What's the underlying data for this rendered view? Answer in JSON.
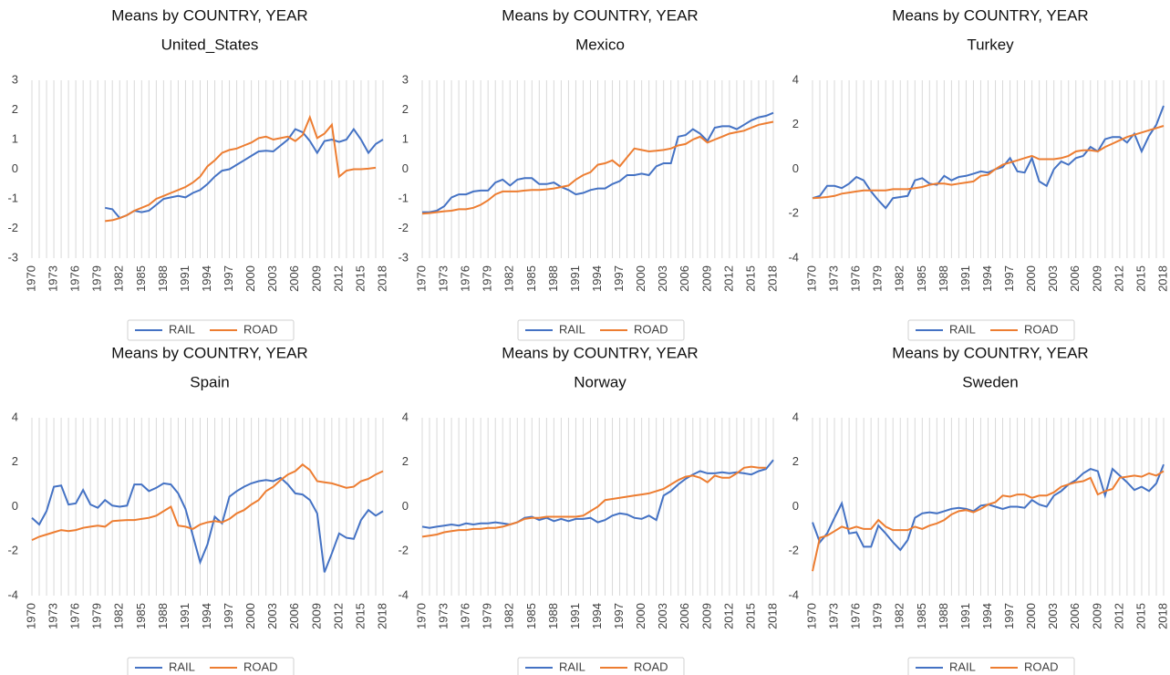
{
  "chart_data": [
    {
      "type": "line",
      "title": "Means by COUNTRY, YEAR",
      "subtitle": "United_States",
      "x": [
        1970,
        1971,
        1972,
        1973,
        1974,
        1975,
        1976,
        1977,
        1978,
        1979,
        1980,
        1981,
        1982,
        1983,
        1984,
        1985,
        1986,
        1987,
        1988,
        1989,
        1990,
        1991,
        1992,
        1993,
        1994,
        1995,
        1996,
        1997,
        1998,
        1999,
        2000,
        2001,
        2002,
        2003,
        2004,
        2005,
        2006,
        2007,
        2008,
        2009,
        2010,
        2011,
        2012,
        2013,
        2014,
        2015,
        2016,
        2017,
        2018
      ],
      "xlim": [
        1970,
        2018
      ],
      "xticks": [
        1970,
        1973,
        1976,
        1979,
        1982,
        1985,
        1988,
        1991,
        1994,
        1997,
        2000,
        2003,
        2006,
        2009,
        2012,
        2015,
        2018
      ],
      "ylim": [
        -3,
        3
      ],
      "yticks": [
        -3,
        -2,
        -1,
        0,
        1,
        2,
        3
      ],
      "grid": true,
      "legend": "bottom",
      "series": [
        {
          "name": "RAIL",
          "color": "#4472c4",
          "values": [
            null,
            null,
            null,
            null,
            null,
            null,
            null,
            null,
            null,
            null,
            -1.3,
            -1.35,
            -1.65,
            -1.55,
            -1.4,
            -1.45,
            -1.4,
            -1.2,
            -1.0,
            -0.95,
            -0.9,
            -0.95,
            -0.8,
            -0.7,
            -0.5,
            -0.25,
            -0.05,
            0.0,
            0.15,
            0.3,
            0.45,
            0.6,
            0.62,
            0.6,
            0.8,
            1.0,
            1.35,
            1.25,
            0.95,
            0.55,
            0.95,
            1.0,
            0.92,
            1.0,
            1.35,
            1.0,
            0.55,
            0.85,
            1.0
          ]
        },
        {
          "name": "ROAD",
          "color": "#ed7d31",
          "values": [
            null,
            null,
            null,
            null,
            null,
            null,
            null,
            null,
            null,
            null,
            -1.75,
            -1.72,
            -1.65,
            -1.55,
            -1.4,
            -1.3,
            -1.2,
            -1.0,
            -0.9,
            -0.8,
            -0.7,
            -0.6,
            -0.45,
            -0.25,
            0.1,
            0.3,
            0.55,
            0.65,
            0.7,
            0.8,
            0.9,
            1.05,
            1.1,
            1.0,
            1.05,
            1.1,
            0.95,
            1.15,
            1.75,
            1.05,
            1.2,
            1.5,
            -0.25,
            -0.05,
            0.0,
            0.0,
            0.02,
            0.05,
            null
          ]
        }
      ]
    },
    {
      "type": "line",
      "title": "Means by COUNTRY, YEAR",
      "subtitle": "Mexico",
      "x": [
        1970,
        1971,
        1972,
        1973,
        1974,
        1975,
        1976,
        1977,
        1978,
        1979,
        1980,
        1981,
        1982,
        1983,
        1984,
        1985,
        1986,
        1987,
        1988,
        1989,
        1990,
        1991,
        1992,
        1993,
        1994,
        1995,
        1996,
        1997,
        1998,
        1999,
        2000,
        2001,
        2002,
        2003,
        2004,
        2005,
        2006,
        2007,
        2008,
        2009,
        2010,
        2011,
        2012,
        2013,
        2014,
        2015,
        2016,
        2017,
        2018
      ],
      "xlim": [
        1970,
        2018
      ],
      "xticks": [
        1970,
        1973,
        1976,
        1979,
        1982,
        1985,
        1988,
        1991,
        1994,
        1997,
        2000,
        2003,
        2006,
        2009,
        2012,
        2015,
        2018
      ],
      "ylim": [
        -3,
        3
      ],
      "yticks": [
        -3,
        -2,
        -1,
        0,
        1,
        2,
        3
      ],
      "grid": true,
      "legend": "bottom",
      "series": [
        {
          "name": "RAIL",
          "color": "#4472c4",
          "values": [
            -1.45,
            -1.45,
            -1.4,
            -1.25,
            -0.95,
            -0.85,
            -0.85,
            -0.75,
            -0.72,
            -0.72,
            -0.45,
            -0.35,
            -0.55,
            -0.35,
            -0.3,
            -0.3,
            -0.5,
            -0.5,
            -0.45,
            -0.6,
            -0.7,
            -0.85,
            -0.8,
            -0.7,
            -0.65,
            -0.65,
            -0.5,
            -0.4,
            -0.2,
            -0.2,
            -0.15,
            -0.2,
            0.1,
            0.2,
            0.2,
            1.1,
            1.15,
            1.35,
            1.2,
            0.95,
            1.4,
            1.45,
            1.45,
            1.35,
            1.5,
            1.65,
            1.75,
            1.8,
            1.9
          ]
        },
        {
          "name": "ROAD",
          "color": "#ed7d31",
          "values": [
            -1.5,
            -1.48,
            -1.45,
            -1.42,
            -1.4,
            -1.35,
            -1.35,
            -1.3,
            -1.2,
            -1.05,
            -0.85,
            -0.75,
            -0.75,
            -0.75,
            -0.72,
            -0.7,
            -0.7,
            -0.68,
            -0.65,
            -0.6,
            -0.55,
            -0.35,
            -0.2,
            -0.1,
            0.15,
            0.2,
            0.3,
            0.1,
            0.4,
            0.7,
            0.65,
            0.6,
            0.62,
            0.65,
            0.7,
            0.8,
            0.85,
            1.0,
            1.1,
            0.9,
            1.0,
            1.1,
            1.2,
            1.25,
            1.3,
            1.4,
            1.5,
            1.55,
            1.6
          ]
        }
      ]
    },
    {
      "type": "line",
      "title": "Means by COUNTRY, YEAR",
      "subtitle": "Turkey",
      "x": [
        1970,
        1971,
        1972,
        1973,
        1974,
        1975,
        1976,
        1977,
        1978,
        1979,
        1980,
        1981,
        1982,
        1983,
        1984,
        1985,
        1986,
        1987,
        1988,
        1989,
        1990,
        1991,
        1992,
        1993,
        1994,
        1995,
        1996,
        1997,
        1998,
        1999,
        2000,
        2001,
        2002,
        2003,
        2004,
        2005,
        2006,
        2007,
        2008,
        2009,
        2010,
        2011,
        2012,
        2013,
        2014,
        2015,
        2016,
        2017,
        2018
      ],
      "xlim": [
        1970,
        2018
      ],
      "xticks": [
        1970,
        1973,
        1976,
        1979,
        1982,
        1985,
        1988,
        1991,
        1994,
        1997,
        2000,
        2003,
        2006,
        2009,
        2012,
        2015,
        2018
      ],
      "ylim": [
        -4,
        4
      ],
      "yticks": [
        -4,
        -2,
        0,
        2,
        4
      ],
      "grid": true,
      "legend": "bottom",
      "series": [
        {
          "name": "RAIL",
          "color": "#4472c4",
          "values": [
            -1.3,
            -1.2,
            -0.75,
            -0.75,
            -0.85,
            -0.65,
            -0.35,
            -0.5,
            -1.0,
            -1.4,
            -1.75,
            -1.3,
            -1.25,
            -1.2,
            -0.5,
            -0.4,
            -0.65,
            -0.7,
            -0.3,
            -0.5,
            -0.35,
            -0.3,
            -0.2,
            -0.1,
            -0.15,
            0.0,
            0.1,
            0.5,
            -0.1,
            -0.15,
            0.5,
            -0.55,
            -0.75,
            0.0,
            0.35,
            0.2,
            0.5,
            0.6,
            1.0,
            0.8,
            1.35,
            1.45,
            1.45,
            1.2,
            1.6,
            0.8,
            1.5,
            2.0,
            2.85
          ]
        },
        {
          "name": "ROAD",
          "color": "#ed7d31",
          "values": [
            -1.3,
            -1.28,
            -1.25,
            -1.2,
            -1.1,
            -1.05,
            -1.0,
            -0.95,
            -0.95,
            -0.95,
            -0.95,
            -0.9,
            -0.9,
            -0.9,
            -0.85,
            -0.8,
            -0.7,
            -0.65,
            -0.65,
            -0.7,
            -0.65,
            -0.6,
            -0.55,
            -0.3,
            -0.25,
            0.0,
            0.2,
            0.3,
            0.4,
            0.5,
            0.6,
            0.45,
            0.45,
            0.45,
            0.5,
            0.6,
            0.8,
            0.85,
            0.85,
            0.8,
            1.0,
            1.15,
            1.3,
            1.45,
            1.55,
            1.65,
            1.75,
            1.85,
            1.95
          ]
        }
      ]
    },
    {
      "type": "line",
      "title": "Means by COUNTRY, YEAR",
      "subtitle": "Spain",
      "x": [
        1970,
        1971,
        1972,
        1973,
        1974,
        1975,
        1976,
        1977,
        1978,
        1979,
        1980,
        1981,
        1982,
        1983,
        1984,
        1985,
        1986,
        1987,
        1988,
        1989,
        1990,
        1991,
        1992,
        1993,
        1994,
        1995,
        1996,
        1997,
        1998,
        1999,
        2000,
        2001,
        2002,
        2003,
        2004,
        2005,
        2006,
        2007,
        2008,
        2009,
        2010,
        2011,
        2012,
        2013,
        2014,
        2015,
        2016,
        2017,
        2018
      ],
      "xlim": [
        1970,
        2018
      ],
      "xticks": [
        1970,
        1973,
        1976,
        1979,
        1982,
        1985,
        1988,
        1991,
        1994,
        1997,
        2000,
        2003,
        2006,
        2009,
        2012,
        2015,
        2018
      ],
      "ylim": [
        -4,
        4
      ],
      "yticks": [
        -4,
        -2,
        0,
        2,
        4
      ],
      "grid": true,
      "legend": "bottom",
      "series": [
        {
          "name": "RAIL",
          "color": "#4472c4",
          "values": [
            -0.5,
            -0.8,
            -0.2,
            0.9,
            0.95,
            0.1,
            0.15,
            0.75,
            0.1,
            -0.05,
            0.3,
            0.05,
            0.0,
            0.05,
            1.0,
            1.0,
            0.7,
            0.85,
            1.05,
            1.0,
            0.6,
            -0.1,
            -1.3,
            -2.5,
            -1.7,
            -0.45,
            -0.75,
            0.45,
            0.7,
            0.9,
            1.05,
            1.15,
            1.2,
            1.15,
            1.3,
            1.0,
            0.6,
            0.55,
            0.3,
            -0.3,
            -2.95,
            -2.1,
            -1.2,
            -1.4,
            -1.45,
            -0.6,
            -0.15,
            -0.4,
            -0.2
          ]
        },
        {
          "name": "ROAD",
          "color": "#ed7d31",
          "values": [
            -1.5,
            -1.35,
            -1.25,
            -1.15,
            -1.05,
            -1.1,
            -1.05,
            -0.95,
            -0.9,
            -0.85,
            -0.9,
            -0.65,
            -0.62,
            -0.6,
            -0.6,
            -0.55,
            -0.5,
            -0.4,
            -0.2,
            0.0,
            -0.85,
            -0.9,
            -1.0,
            -0.8,
            -0.7,
            -0.65,
            -0.7,
            -0.55,
            -0.3,
            -0.15,
            0.1,
            0.3,
            0.7,
            0.9,
            1.2,
            1.45,
            1.6,
            1.9,
            1.65,
            1.15,
            1.1,
            1.05,
            0.95,
            0.85,
            0.9,
            1.15,
            1.25,
            1.45,
            1.6
          ]
        }
      ]
    },
    {
      "type": "line",
      "title": "Means by COUNTRY, YEAR",
      "subtitle": "Norway",
      "x": [
        1970,
        1971,
        1972,
        1973,
        1974,
        1975,
        1976,
        1977,
        1978,
        1979,
        1980,
        1981,
        1982,
        1983,
        1984,
        1985,
        1986,
        1987,
        1988,
        1989,
        1990,
        1991,
        1992,
        1993,
        1994,
        1995,
        1996,
        1997,
        1998,
        1999,
        2000,
        2001,
        2002,
        2003,
        2004,
        2005,
        2006,
        2007,
        2008,
        2009,
        2010,
        2011,
        2012,
        2013,
        2014,
        2015,
        2016,
        2017,
        2018
      ],
      "xlim": [
        1970,
        2018
      ],
      "xticks": [
        1970,
        1973,
        1976,
        1979,
        1982,
        1985,
        1988,
        1991,
        1994,
        1997,
        2000,
        2003,
        2006,
        2009,
        2012,
        2015,
        2018
      ],
      "ylim": [
        -4,
        4
      ],
      "yticks": [
        -4,
        -2,
        0,
        2,
        4
      ],
      "grid": true,
      "legend": "bottom",
      "series": [
        {
          "name": "RAIL",
          "color": "#4472c4",
          "values": [
            -0.9,
            -0.95,
            -0.9,
            -0.85,
            -0.8,
            -0.85,
            -0.75,
            -0.8,
            -0.75,
            -0.75,
            -0.7,
            -0.75,
            -0.8,
            -0.7,
            -0.5,
            -0.45,
            -0.6,
            -0.5,
            -0.65,
            -0.55,
            -0.65,
            -0.55,
            -0.55,
            -0.5,
            -0.7,
            -0.6,
            -0.4,
            -0.3,
            -0.35,
            -0.5,
            -0.55,
            -0.4,
            -0.6,
            0.5,
            0.7,
            1.0,
            1.25,
            1.45,
            1.6,
            1.5,
            1.5,
            1.55,
            1.5,
            1.55,
            1.5,
            1.45,
            1.6,
            1.7,
            2.1
          ]
        },
        {
          "name": "ROAD",
          "color": "#ed7d31",
          "values": [
            -1.35,
            -1.3,
            -1.25,
            -1.15,
            -1.1,
            -1.05,
            -1.05,
            -1.0,
            -1.0,
            -0.95,
            -0.95,
            -0.9,
            -0.8,
            -0.7,
            -0.55,
            -0.5,
            -0.5,
            -0.45,
            -0.45,
            -0.45,
            -0.45,
            -0.45,
            -0.4,
            -0.2,
            0.0,
            0.3,
            0.35,
            0.4,
            0.45,
            0.5,
            0.55,
            0.6,
            0.7,
            0.8,
            1.0,
            1.2,
            1.35,
            1.4,
            1.3,
            1.1,
            1.4,
            1.3,
            1.3,
            1.5,
            1.75,
            1.8,
            1.75,
            1.75,
            null
          ]
        }
      ]
    },
    {
      "type": "line",
      "title": "Means by COUNTRY, YEAR",
      "subtitle": "Sweden",
      "x": [
        1970,
        1971,
        1972,
        1973,
        1974,
        1975,
        1976,
        1977,
        1978,
        1979,
        1980,
        1981,
        1982,
        1983,
        1984,
        1985,
        1986,
        1987,
        1988,
        1989,
        1990,
        1991,
        1992,
        1993,
        1994,
        1995,
        1996,
        1997,
        1998,
        1999,
        2000,
        2001,
        2002,
        2003,
        2004,
        2005,
        2006,
        2007,
        2008,
        2009,
        2010,
        2011,
        2012,
        2013,
        2014,
        2015,
        2016,
        2017,
        2018
      ],
      "xlim": [
        1970,
        2018
      ],
      "xticks": [
        1970,
        1973,
        1976,
        1979,
        1982,
        1985,
        1988,
        1991,
        1994,
        1997,
        2000,
        2003,
        2006,
        2009,
        2012,
        2015,
        2018
      ],
      "ylim": [
        -4,
        4
      ],
      "yticks": [
        -4,
        -2,
        0,
        2,
        4
      ],
      "grid": true,
      "legend": "bottom",
      "series": [
        {
          "name": "RAIL",
          "color": "#4472c4",
          "values": [
            -0.7,
            -1.6,
            -1.2,
            -0.5,
            0.15,
            -1.2,
            -1.15,
            -1.8,
            -1.8,
            -0.85,
            -1.2,
            -1.6,
            -1.95,
            -1.5,
            -0.5,
            -0.3,
            -0.25,
            -0.3,
            -0.2,
            -0.1,
            -0.05,
            -0.1,
            -0.2,
            0.05,
            0.1,
            0.0,
            -0.1,
            0.0,
            0.0,
            -0.05,
            0.3,
            0.1,
            0.0,
            0.5,
            0.7,
            1.0,
            1.2,
            1.5,
            1.7,
            1.6,
            0.5,
            1.7,
            1.4,
            1.1,
            0.75,
            0.9,
            0.7,
            1.05,
            1.9
          ]
        },
        {
          "name": "ROAD",
          "color": "#ed7d31",
          "values": [
            -2.9,
            -1.4,
            -1.3,
            -1.1,
            -0.9,
            -1.0,
            -0.9,
            -1.0,
            -1.0,
            -0.6,
            -0.9,
            -1.05,
            -1.05,
            -1.05,
            -0.9,
            -1.0,
            -0.85,
            -0.75,
            -0.6,
            -0.35,
            -0.2,
            -0.15,
            -0.25,
            -0.1,
            0.1,
            0.2,
            0.5,
            0.45,
            0.55,
            0.55,
            0.4,
            0.5,
            0.5,
            0.65,
            0.9,
            1.0,
            1.1,
            1.15,
            1.3,
            0.55,
            0.7,
            0.8,
            1.3,
            1.35,
            1.4,
            1.35,
            1.5,
            1.4,
            1.6
          ]
        }
      ]
    }
  ]
}
